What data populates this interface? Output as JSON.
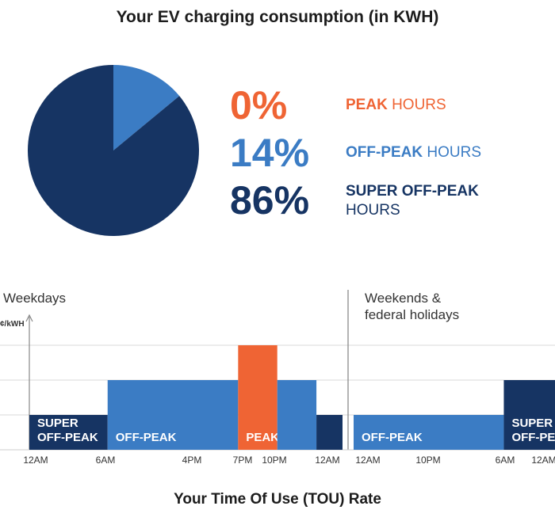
{
  "header": {
    "title": "Your EV charging consumption (in KWH)"
  },
  "footer": {
    "title": "Your Time Of Use (TOU) Rate"
  },
  "colors": {
    "peak": "#ef6434",
    "off_peak": "#3b7cc4",
    "super_off_peak": "#163463",
    "grid": "#d8d8d8"
  },
  "chart_data": [
    {
      "type": "pie",
      "title": "Your EV charging consumption (in KWH)",
      "slices": [
        {
          "key": "peak",
          "pct_label": "0%",
          "value": 0,
          "word1": "PEAK",
          "word2": "HOURS"
        },
        {
          "key": "off_peak",
          "pct_label": "14%",
          "value": 14,
          "word1": "OFF-PEAK",
          "word2": "HOURS"
        },
        {
          "key": "super_off_peak",
          "pct_label": "86%",
          "value": 86,
          "word1": "SUPER OFF-PEAK",
          "word2": "HOURS"
        }
      ]
    },
    {
      "type": "bar",
      "title": "Your Time Of Use (TOU) Rate",
      "ylabel": "¢/kWH",
      "ylim": [
        0,
        3
      ],
      "grid": true,
      "sections": [
        {
          "name": "Weekdays",
          "name_lines": [
            "Weekdays"
          ],
          "tick_labels": [
            "12AM",
            "6AM",
            "4PM",
            "7PM",
            "10PM",
            "12AM"
          ],
          "periods": [
            {
              "from": 0,
              "to": 6,
              "level": 1,
              "period": "super_off_peak",
              "label_lines": [
                "SUPER",
                "OFF-PEAK"
              ]
            },
            {
              "from": 6,
              "to": 16,
              "level": 2,
              "period": "off_peak",
              "label_lines": [
                "OFF-PEAK"
              ]
            },
            {
              "from": 16,
              "to": 19,
              "level": 3,
              "period": "peak",
              "label_lines": [
                "PEAK"
              ]
            },
            {
              "from": 19,
              "to": 22,
              "level": 2,
              "period": "off_peak",
              "label_lines": []
            },
            {
              "from": 22,
              "to": 24,
              "level": 1,
              "period": "super_off_peak",
              "label_lines": []
            }
          ]
        },
        {
          "name": "Weekends & federal holidays",
          "name_lines": [
            "Weekends &",
            "federal holidays"
          ],
          "tick_labels": [
            "12AM",
            "10PM",
            "6AM",
            "12AM"
          ],
          "periods": [
            {
              "from": 0,
              "to": 22,
              "level": 1,
              "period": "off_peak",
              "label_lines": [
                "OFF-PEAK"
              ]
            },
            {
              "from": 22,
              "to": 30,
              "level": 2,
              "period": "super_off_peak",
              "label_lines": [
                "SUPER",
                "OFF-PEAK"
              ]
            },
            {
              "from": 30,
              "to": 36,
              "level": 1,
              "period": "off_peak",
              "label_lines": []
            }
          ]
        }
      ]
    }
  ]
}
